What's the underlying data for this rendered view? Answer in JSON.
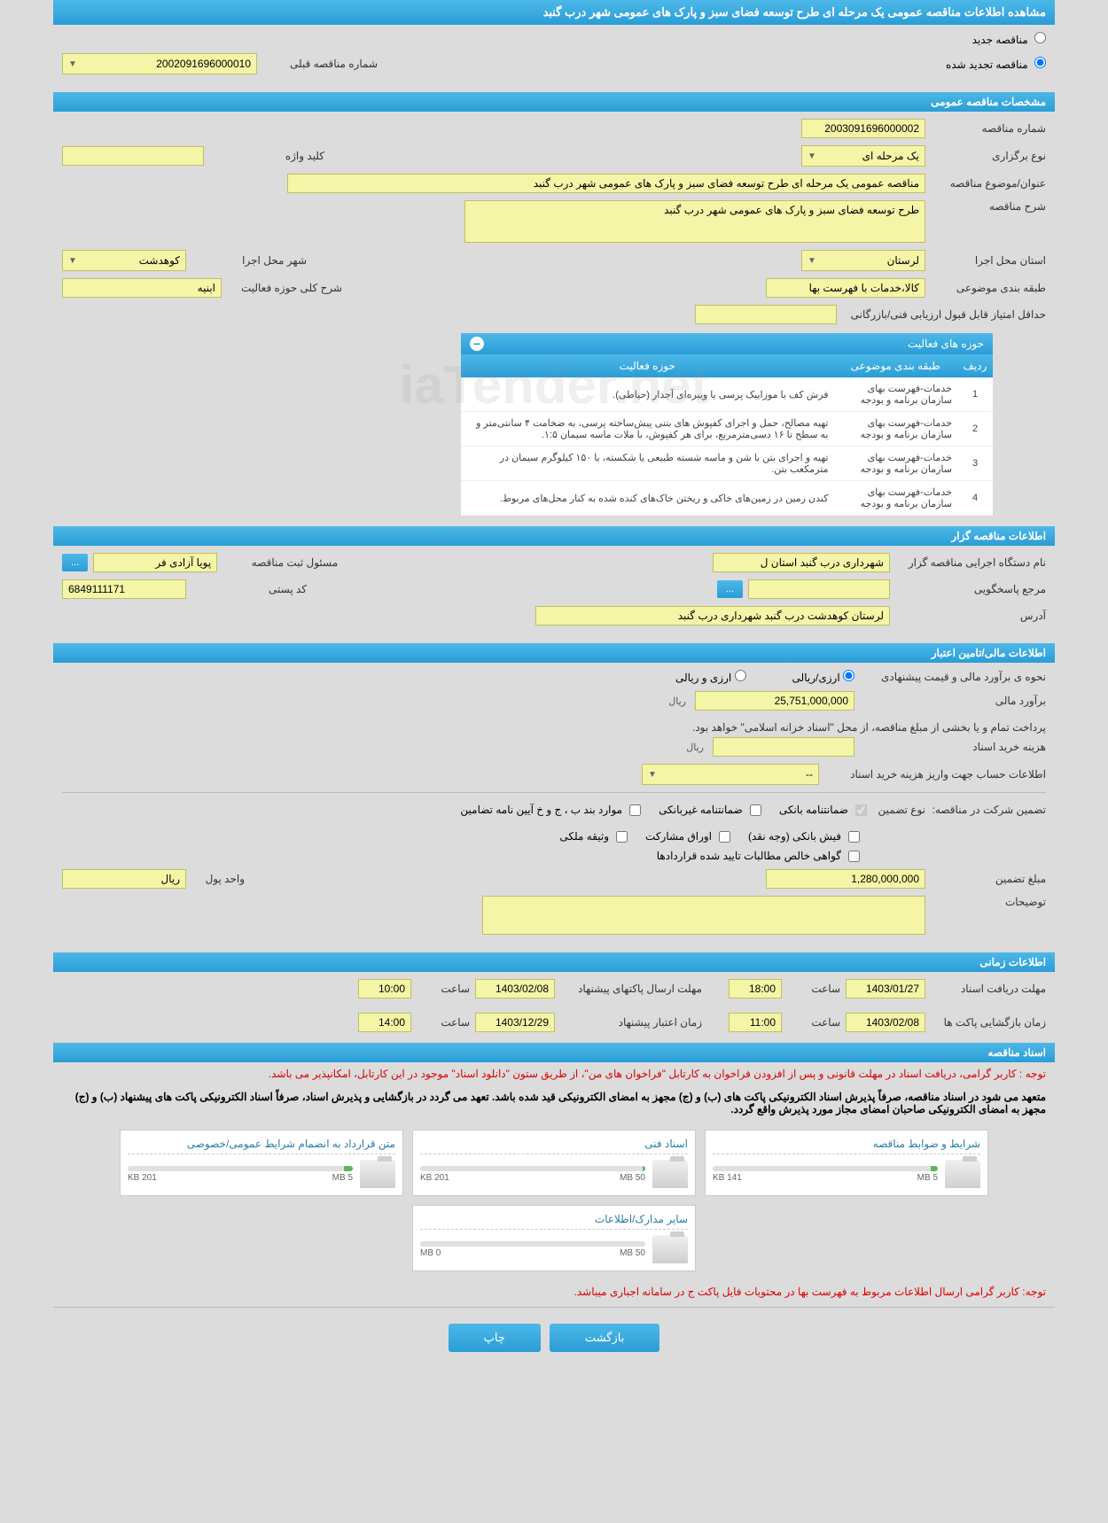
{
  "page_title": "مشاهده اطلاعات مناقصه عمومی یک مرحله ای طرح توسعه فضای سبز و پارک های عمومی شهر درب گنبد",
  "top": {
    "radio_new": "مناقصه جدید",
    "radio_renewed": "مناقصه تجدید شده",
    "prev_tender_label": "شماره مناقصه قبلی",
    "prev_tender_value": "2002091696000010"
  },
  "s1": {
    "header": "مشخصات مناقصه عمومی",
    "tender_no_label": "شماره مناقصه",
    "tender_no": "2003091696000002",
    "type_label": "نوع برگزاری",
    "type_value": "یک مرحله ای",
    "keyword_label": "کلید واژه",
    "subject_label": "عنوان/موضوع مناقصه",
    "subject": "مناقصه عمومی یک مرحله ای طرح توسعه فضای سبز و پارک های عمومی شهر درب گنبد",
    "desc_label": "شرح مناقصه",
    "desc": "طرح توسعه فضای سبز و پارک های عمومی شهر درب گنبد",
    "province_label": "استان محل اجرا",
    "province": "لرستان",
    "city_label": "شهر محل اجرا",
    "city": "کوهدشت",
    "category_label": "طبقه بندی موضوعی",
    "category": "کالا،خدمات با فهرست بها",
    "activity_desc_label": "شرح کلی حوزه فعالیت",
    "activity_desc": "ابنیه",
    "min_score_label": "حداقل امتیاز قابل قبول ارزیابی فنی/بازرگانی"
  },
  "activity": {
    "header": "حوزه های فعالیت",
    "cols": [
      "ردیف",
      "طبقه بندی موضوعی",
      "حوزه فعالیت"
    ],
    "rows": [
      {
        "idx": "1",
        "cat": "خدمات-فهرست بهای سازمان برنامه و بودجه",
        "act": "فرش کف با موزاییک پرسی یا ویبره‌ای آجدار (حیاطی)."
      },
      {
        "idx": "2",
        "cat": "خدمات-فهرست بهای سازمان برنامه و بودجه",
        "act": "تهیه مصالح، حمل و اجرای کفپوش های بتنی پیش‌ساخته پرسی، به ضخامت ۴ سانتی‌متر و به سطح تا ۱۶ دسی‌مترمربع، برای هر کفپوش، با ملات ماسه سیمان ۱:۵."
      },
      {
        "idx": "3",
        "cat": "خدمات-فهرست بهای سازمان برنامه و بودجه",
        "act": "تهیه و اجرای بتن با شن و ماسه شسته طبیعی یا شکسته، با ۱۵۰ کیلوگرم سیمان در مترمکعب بتن."
      },
      {
        "idx": "4",
        "cat": "خدمات-فهرست بهای سازمان برنامه و بودجه",
        "act": "کندن زمین در زمین‌های خاکی و ریختن خاک‌های کنده شده به کنار محل‌های مربوط."
      }
    ]
  },
  "s2": {
    "header": "اطلاعات مناقصه گزار",
    "org_label": "نام دستگاه اجرایی مناقصه گزار",
    "org": "شهرداری درب گنبد استان ل",
    "reg_officer_label": "مسئول ثبت مناقصه",
    "reg_officer": "پویا آزادی فر",
    "ref_label": "مرجع پاسخگویی",
    "postal_label": "کد پستی",
    "postal": "6849111171",
    "address_label": "آدرس",
    "address": "لرستان کوهدشت درب گنبد شهرداری درب گنبد",
    "more_btn": "..."
  },
  "s3": {
    "header": "اطلاعات مالی/تامین اعتبار",
    "method_label": "نحوه ی برآورد مالی و قیمت پیشنهادی",
    "rial_option": "ارزی/ریالی",
    "currency_option": "ارزی و ریالی",
    "estimate_label": "برآورد مالی",
    "estimate": "25,751,000,000",
    "rial": "ریال",
    "note": "پرداخت تمام و یا بخشی از مبلغ مناقصه، از محل \"اسناد خزانه اسلامی\" خواهد بود.",
    "cost_label": "هزینه خرید اسناد",
    "account_label": "اطلاعات حساب جهت واریز هزینه خرید اسناد",
    "account_dash": "--"
  },
  "guarantee": {
    "label": "تضمین شرکت در مناقصه:",
    "type_label": "نوع تضمین",
    "opt1": "ضمانتنامه بانکی",
    "opt2": "ضمانتنامه غیربانکی",
    "opt3": "موارد بند ب ، ج و خ آیین نامه تضامین",
    "opt4": "فیش بانکی (وجه نقد)",
    "opt5": "اوراق مشارکت",
    "opt6": "وثیقه ملکی",
    "opt7": "گواهی خالص مطالبات تایید شده قراردادها",
    "amount_label": "مبلغ تضمین",
    "amount": "1,280,000,000",
    "unit_label": "واحد پول",
    "unit": "ریال",
    "desc_label": "توضیحات"
  },
  "s4": {
    "header": "اطلاعات زمانی",
    "deadline_label": "مهلت دریافت اسناد",
    "deadline_date": "1403/01/27",
    "deadline_time": "18:00",
    "submit_label": "مهلت ارسال پاکتهای پیشنهاد",
    "submit_date": "1403/02/08",
    "submit_time": "10:00",
    "open_label": "زمان بازگشایی پاکت ها",
    "open_date": "1403/02/08",
    "open_time": "11:00",
    "valid_label": "زمان اعتبار پیشنهاد",
    "valid_date": "1403/12/29",
    "valid_time": "14:00",
    "time_label": "ساعت"
  },
  "s5": {
    "header": "اسناد مناقصه",
    "notice1": "توجه : کاربر گرامی، دریافت اسناد در مهلت قانونی و پس از افزودن فراخوان به کارتابل \"فراخوان های من\"، از طریق ستون \"دانلود اسناد\" موجود در این کارتابل، امکانپذیر می باشد.",
    "notice2": "متعهد می شود در اسناد مناقصه، صرفاً پذیرش اسناد الکترونیکی پاکت های (ب) و (ج) مجهز به امضای الکترونیکی قید شده باشد. تعهد می گردد در بازگشایی و پذیرش اسناد، صرفاً اسناد الکترونیکی پاکت های پیشنهاد (ب) و (ج) مجهز به امضای الکترونیکی صاحبان امضای مجاز مورد پذیرش واقع گردد.",
    "notice3": "توجه: کاربر گرامی ارسال اطلاعات مربوط به فهرست بها در محتویات فایل پاکت ج در سامانه اجباری میباشد.",
    "files": [
      {
        "title": "شرایط و ضوابط مناقصه",
        "size": "141 KB",
        "max": "5 MB",
        "pct": 3
      },
      {
        "title": "اسناد فنی",
        "size": "201 KB",
        "max": "50 MB",
        "pct": 1
      },
      {
        "title": "متن قرارداد به انضمام شرایط عمومی/خصوصی",
        "size": "201 KB",
        "max": "5 MB",
        "pct": 4
      },
      {
        "title": "سایر مدارک/اطلاعات",
        "size": "0 MB",
        "max": "50 MB",
        "pct": 0
      }
    ]
  },
  "footer": {
    "print": "چاپ",
    "back": "بازگشت"
  },
  "watermark": "iaTender.net"
}
